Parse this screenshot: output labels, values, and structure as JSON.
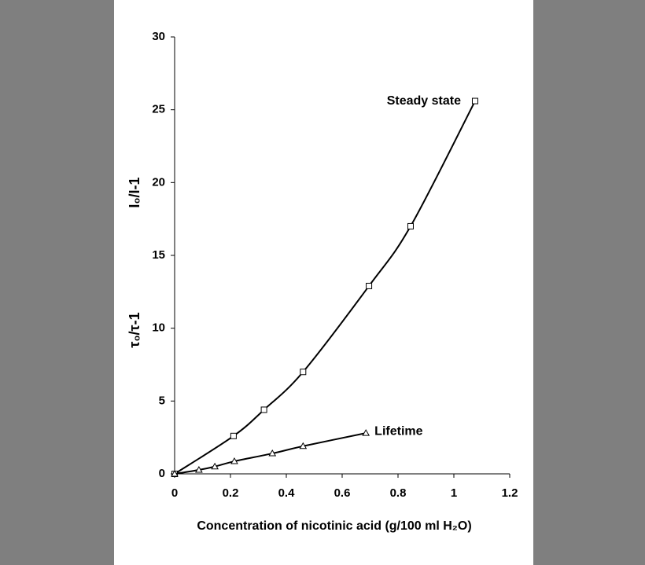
{
  "chart_data": {
    "type": "scatter",
    "x_label": "Concentration of nicotinic acid (g/100 ml H₂O)",
    "y_labels": [
      "I₀/I-1",
      "τ₀/τ-1"
    ],
    "xlim": [
      0,
      1.2
    ],
    "xticks": [
      0,
      0.2,
      0.4,
      0.6,
      0.8,
      1,
      1.2
    ],
    "ylim": [
      0,
      30
    ],
    "yticks": [
      0,
      5,
      10,
      15,
      20,
      25,
      30
    ],
    "series": [
      {
        "name": "Steady state",
        "color": "#000000",
        "marker": "square",
        "x": [
          0,
          0.211,
          0.32,
          0.46,
          0.696,
          0.845,
          1.076
        ],
        "values": [
          0,
          2.6,
          4.4,
          7.0,
          12.9,
          17.0,
          25.6
        ]
      },
      {
        "name": "Lifetime",
        "color": "#000000",
        "marker": "triangle",
        "x": [
          0,
          0.087,
          0.144,
          0.214,
          0.35,
          0.46,
          0.685
        ],
        "values": [
          0,
          0.27,
          0.5,
          0.86,
          1.4,
          1.9,
          2.8
        ]
      }
    ]
  }
}
